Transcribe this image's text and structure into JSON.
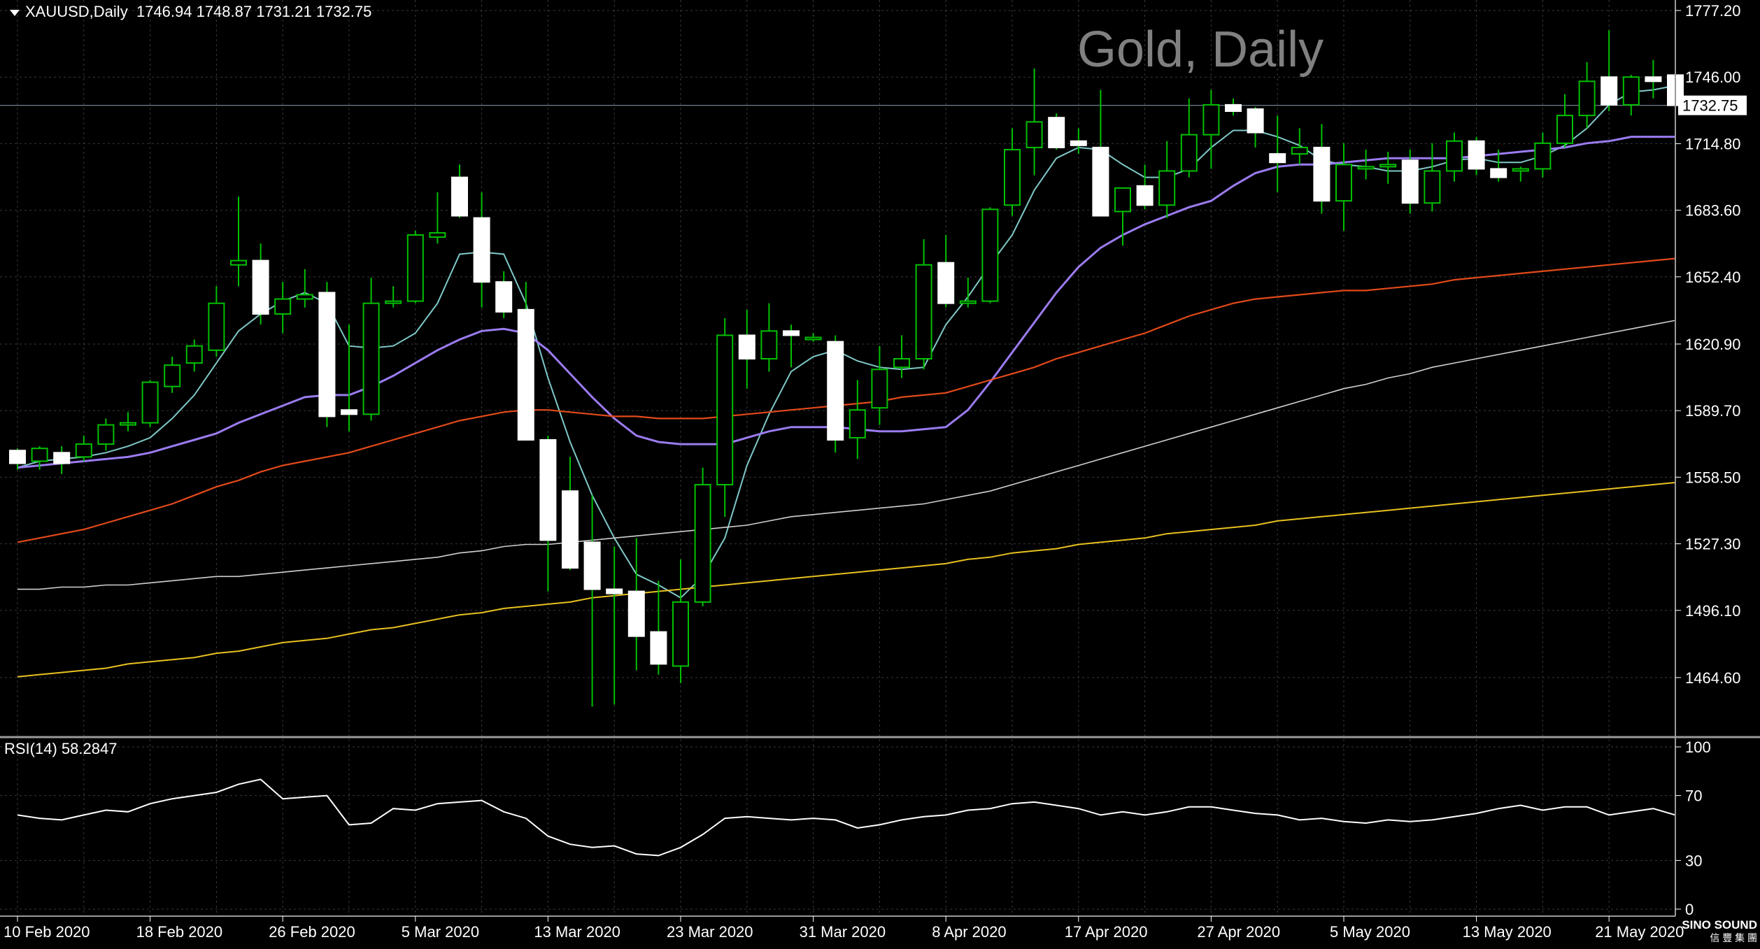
{
  "header": {
    "symbol": "XAUUSD,Daily",
    "ohlc": "1746.94 1748.87 1731.21 1732.75",
    "watermark": "Gold, Daily"
  },
  "colors": {
    "background": "#000000",
    "grid": "#3a3a3a",
    "candle_up_fill": "#000000",
    "candle_up_border": "#00c000",
    "candle_down_fill": "#ffffff",
    "candle_down_border": "#ffffff",
    "wick": "#00c000",
    "ma_fast": "#7fc8c8",
    "ma_20": "#9b7cf0",
    "ma_50": "#e24a1a",
    "ma_100": "#d0d0d0",
    "ma_200": "#e8c020",
    "rsi_line": "#ffffff",
    "price_line": "#708090"
  },
  "chart_data": {
    "type": "candlestick",
    "price_axis": {
      "min": 1441.3,
      "max": 1777.2,
      "ticks": [
        "1777.20",
        "1746.00",
        "1714.80",
        "1683.60",
        "1652.40",
        "1620.90",
        "1589.70",
        "1558.50",
        "1527.30",
        "1496.10",
        "1464.60"
      ],
      "current_price_label": "1732.75",
      "current_price": 1732.75
    },
    "date_axis": {
      "labels": [
        "10 Feb 2020",
        "18 Feb 2020",
        "26 Feb 2020",
        "5 Mar 2020",
        "13 Mar 2020",
        "23 Mar 2020",
        "31 Mar 2020",
        "8 Apr 2020",
        "17 Apr 2020",
        "27 Apr 2020",
        "5 May 2020",
        "13 May 2020",
        "21 May 2020"
      ],
      "label_bars": [
        0,
        6,
        12,
        18,
        24,
        30,
        36,
        42,
        48,
        54,
        60,
        66,
        72
      ]
    },
    "candles": [
      [
        1571,
        1572,
        1562,
        1565
      ],
      [
        1566,
        1573,
        1562,
        1572
      ],
      [
        1570,
        1573,
        1560,
        1565
      ],
      [
        1568,
        1578,
        1566,
        1574
      ],
      [
        1574,
        1586,
        1571,
        1583
      ],
      [
        1583,
        1589,
        1580,
        1584
      ],
      [
        1584,
        1604,
        1582,
        1603
      ],
      [
        1601,
        1615,
        1598,
        1611
      ],
      [
        1612,
        1623,
        1608,
        1620
      ],
      [
        1618,
        1648,
        1615,
        1640
      ],
      [
        1658,
        1690,
        1648,
        1660
      ],
      [
        1660,
        1668,
        1630,
        1635
      ],
      [
        1635,
        1650,
        1626,
        1642
      ],
      [
        1642,
        1656,
        1638,
        1644
      ],
      [
        1645,
        1650,
        1582,
        1587
      ],
      [
        1590,
        1630,
        1580,
        1588
      ],
      [
        1588,
        1652,
        1585,
        1640
      ],
      [
        1641,
        1648,
        1638,
        1641
      ],
      [
        1641,
        1674,
        1640,
        1672
      ],
      [
        1671,
        1692,
        1668,
        1673
      ],
      [
        1699,
        1705,
        1680,
        1681
      ],
      [
        1680,
        1692,
        1638,
        1650
      ],
      [
        1650,
        1655,
        1633,
        1636
      ],
      [
        1637,
        1650,
        1576,
        1576
      ],
      [
        1576,
        1578,
        1505,
        1529
      ],
      [
        1552,
        1568,
        1515,
        1516
      ],
      [
        1528,
        1550,
        1451,
        1506
      ],
      [
        1506,
        1526,
        1452,
        1504
      ],
      [
        1505,
        1530,
        1468,
        1484
      ],
      [
        1486,
        1510,
        1466,
        1471
      ],
      [
        1470,
        1520,
        1462,
        1500
      ],
      [
        1500,
        1563,
        1498,
        1555
      ],
      [
        1555,
        1633,
        1540,
        1625
      ],
      [
        1625,
        1637,
        1600,
        1614
      ],
      [
        1614,
        1640,
        1608,
        1627
      ],
      [
        1627,
        1630,
        1610,
        1625
      ],
      [
        1624,
        1626,
        1622,
        1624
      ],
      [
        1622,
        1625,
        1570,
        1576
      ],
      [
        1577,
        1604,
        1567,
        1590
      ],
      [
        1591,
        1620,
        1583,
        1609
      ],
      [
        1610,
        1625,
        1605,
        1614
      ],
      [
        1614,
        1670,
        1609,
        1658
      ],
      [
        1659,
        1672,
        1638,
        1640
      ],
      [
        1640,
        1652,
        1638,
        1641
      ],
      [
        1641,
        1685,
        1640,
        1684
      ],
      [
        1686,
        1722,
        1681,
        1712
      ],
      [
        1713,
        1750,
        1700,
        1725
      ],
      [
        1727,
        1729,
        1712,
        1713
      ],
      [
        1716,
        1722,
        1710,
        1714
      ],
      [
        1713,
        1740,
        1682,
        1681
      ],
      [
        1683,
        1692,
        1667,
        1694
      ],
      [
        1695,
        1705,
        1684,
        1686
      ],
      [
        1686,
        1716,
        1680,
        1702
      ],
      [
        1702,
        1736,
        1699,
        1719
      ],
      [
        1719,
        1740,
        1703,
        1733
      ],
      [
        1733,
        1736,
        1728,
        1730
      ],
      [
        1731,
        1732,
        1713,
        1720
      ],
      [
        1710,
        1728,
        1692,
        1706
      ],
      [
        1710,
        1722,
        1705,
        1713
      ],
      [
        1713,
        1724,
        1682,
        1688
      ],
      [
        1688,
        1715,
        1674,
        1705
      ],
      [
        1703,
        1712,
        1698,
        1704
      ],
      [
        1704,
        1711,
        1696,
        1705
      ],
      [
        1707,
        1712,
        1682,
        1687
      ],
      [
        1687,
        1715,
        1683,
        1702
      ],
      [
        1702,
        1720,
        1697,
        1716
      ],
      [
        1716,
        1718,
        1700,
        1703
      ],
      [
        1703,
        1712,
        1697,
        1699
      ],
      [
        1702,
        1704,
        1697,
        1703
      ],
      [
        1703,
        1720,
        1699,
        1715
      ],
      [
        1715,
        1738,
        1713,
        1728
      ],
      [
        1728,
        1753,
        1722,
        1744
      ],
      [
        1746,
        1768,
        1730,
        1733
      ],
      [
        1733,
        1747,
        1728,
        1746
      ],
      [
        1746,
        1754,
        1736,
        1744
      ],
      [
        1746.94,
        1748.87,
        1731.21,
        1732.75
      ]
    ],
    "moving_averages": [
      {
        "key": "ma_fast",
        "values": [
          1563,
          1566,
          1567,
          1568,
          1570,
          1573,
          1577,
          1586,
          1597,
          1612,
          1627,
          1635,
          1641,
          1645,
          1640,
          1620,
          1619,
          1620,
          1626,
          1640,
          1663,
          1664,
          1663,
          1640,
          1605,
          1575,
          1550,
          1530,
          1513,
          1508,
          1502,
          1512,
          1530,
          1564,
          1588,
          1608,
          1615,
          1618,
          1613,
          1610,
          1609,
          1610,
          1630,
          1643,
          1658,
          1672,
          1693,
          1708,
          1713,
          1712,
          1705,
          1699,
          1699,
          1703,
          1713,
          1721,
          1721,
          1718,
          1714,
          1707,
          1705,
          1704,
          1702,
          1702,
          1704,
          1707,
          1708,
          1706,
          1706,
          1709,
          1714,
          1722,
          1733,
          1739,
          1740,
          1742
        ]
      },
      {
        "key": "ma_20",
        "values": [
          1563,
          1564,
          1565,
          1566,
          1567,
          1568,
          1570,
          1573,
          1576,
          1579,
          1584,
          1588,
          1592,
          1596,
          1597,
          1597,
          1601,
          1606,
          1612,
          1618,
          1623,
          1627,
          1628,
          1626,
          1618,
          1607,
          1596,
          1586,
          1578,
          1575,
          1574,
          1574,
          1574,
          1577,
          1580,
          1582,
          1582,
          1582,
          1581,
          1580,
          1580,
          1581,
          1582,
          1590,
          1603,
          1617,
          1631,
          1645,
          1657,
          1666,
          1672,
          1677,
          1681,
          1685,
          1688,
          1695,
          1701,
          1704,
          1705,
          1705,
          1706,
          1707,
          1708,
          1708,
          1708,
          1708,
          1709,
          1710,
          1711,
          1712,
          1713,
          1715,
          1716,
          1718,
          1718,
          1718
        ]
      },
      {
        "key": "ma_50",
        "values": [
          1528,
          1530,
          1532,
          1534,
          1537,
          1540,
          1543,
          1546,
          1550,
          1554,
          1557,
          1561,
          1564,
          1566,
          1568,
          1570,
          1573,
          1576,
          1579,
          1582,
          1585,
          1587,
          1589,
          1590,
          1590,
          1589,
          1588,
          1587,
          1587,
          1586,
          1586,
          1586,
          1587,
          1588,
          1589,
          1590,
          1591,
          1592,
          1593,
          1594,
          1596,
          1597,
          1598,
          1601,
          1604,
          1607,
          1610,
          1614,
          1617,
          1620,
          1623,
          1626,
          1630,
          1634,
          1637,
          1640,
          1642,
          1643,
          1644,
          1645,
          1646,
          1646,
          1647,
          1648,
          1649,
          1651,
          1652,
          1653,
          1654,
          1655,
          1656,
          1657,
          1658,
          1659,
          1660,
          1661
        ]
      },
      {
        "key": "ma_100",
        "values": [
          1506,
          1506,
          1507,
          1507,
          1508,
          1508,
          1509,
          1510,
          1511,
          1512,
          1512,
          1513,
          1514,
          1515,
          1516,
          1517,
          1518,
          1519,
          1520,
          1521,
          1523,
          1524,
          1526,
          1527,
          1527,
          1528,
          1529,
          1530,
          1531,
          1532,
          1533,
          1534,
          1535,
          1536,
          1538,
          1540,
          1541,
          1542,
          1543,
          1544,
          1545,
          1546,
          1548,
          1550,
          1552,
          1555,
          1558,
          1561,
          1564,
          1567,
          1570,
          1573,
          1576,
          1579,
          1582,
          1585,
          1588,
          1591,
          1594,
          1597,
          1600,
          1602,
          1605,
          1607,
          1610,
          1612,
          1614,
          1616,
          1618,
          1620,
          1622,
          1624,
          1626,
          1628,
          1630,
          1632
        ]
      },
      {
        "key": "ma_200",
        "values": [
          1465,
          1466,
          1467,
          1468,
          1469,
          1471,
          1472,
          1473,
          1474,
          1476,
          1477,
          1479,
          1481,
          1482,
          1483,
          1485,
          1487,
          1488,
          1490,
          1492,
          1494,
          1495,
          1497,
          1498,
          1499,
          1500,
          1502,
          1503,
          1504,
          1505,
          1506,
          1507,
          1508,
          1509,
          1510,
          1511,
          1512,
          1513,
          1514,
          1515,
          1516,
          1517,
          1518,
          1520,
          1521,
          1523,
          1524,
          1525,
          1527,
          1528,
          1529,
          1530,
          1532,
          1533,
          1534,
          1535,
          1536,
          1538,
          1539,
          1540,
          1541,
          1542,
          1543,
          1544,
          1545,
          1546,
          1547,
          1548,
          1549,
          1550,
          1551,
          1552,
          1553,
          1554,
          1555,
          1556
        ]
      }
    ],
    "rsi": {
      "label": "RSI(14) 58.2847",
      "period": 14,
      "last_value": 58.2847,
      "min": 0,
      "max": 100,
      "ticks": [
        "100",
        "70",
        "30",
        "0"
      ],
      "values": [
        58,
        56,
        55,
        58,
        61,
        60,
        65,
        68,
        70,
        72,
        77,
        80,
        68,
        69,
        70,
        52,
        53,
        62,
        61,
        65,
        66,
        67,
        60,
        56,
        45,
        40,
        38,
        39,
        34,
        33,
        38,
        46,
        56,
        57,
        56,
        55,
        56,
        55,
        50,
        52,
        55,
        57,
        58,
        61,
        62,
        65,
        66,
        64,
        62,
        58,
        60,
        58,
        60,
        63,
        63,
        61,
        59,
        58,
        55,
        56,
        54,
        53,
        55,
        54,
        55,
        57,
        59,
        62,
        64,
        61,
        63,
        63,
        58,
        60,
        62,
        58
      ]
    }
  },
  "logo": {
    "line1": "SINO SOUND",
    "line2": "信 豐 集 團"
  }
}
